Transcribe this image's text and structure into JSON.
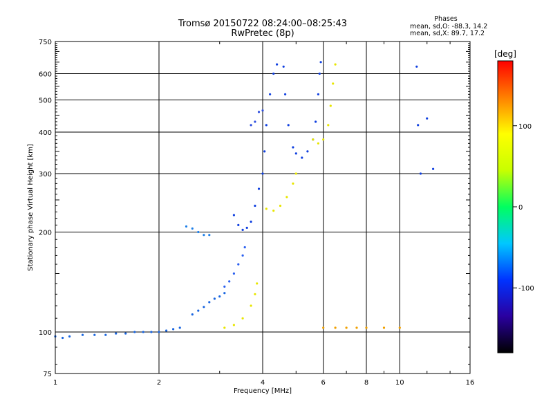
{
  "header": {
    "title_line1": "Tromsø 20150722 08:24:00–08:25:43",
    "title_line2": "RwPretec (8p)"
  },
  "phases": {
    "heading": "Phases",
    "o_stats": "mean, sd,O: -88.3, 14.2",
    "x_stats": "mean, sd,X:  89.7, 17.2"
  },
  "colorbar": {
    "label": "[deg]",
    "ticks": [
      {
        "value": 100,
        "label": "100"
      },
      {
        "value": 0,
        "label": "0"
      },
      {
        "value": -100,
        "label": "-100"
      }
    ],
    "range": [
      -180,
      180
    ],
    "colors": [
      "#000000",
      "#2a00a0",
      "#0033ff",
      "#00c8ff",
      "#00ff60",
      "#c8ff00",
      "#ffff00",
      "#ff8000",
      "#ff0000"
    ]
  },
  "chart_data": {
    "type": "scatter",
    "xlabel": "Frequency [MHz]",
    "ylabel": "Stationary phase Virtual Height [km]",
    "xscale": "log",
    "yscale": "log",
    "xlim": [
      1,
      16
    ],
    "ylim": [
      75,
      750
    ],
    "xticks": [
      1,
      2,
      4,
      6,
      8,
      10,
      16
    ],
    "xtick_labels": [
      "1",
      "2",
      "4",
      "6",
      "8",
      "10",
      "16"
    ],
    "yticks": [
      75,
      100,
      200,
      300,
      400,
      500,
      600,
      750
    ],
    "ytick_labels": [
      "75",
      "100",
      "200",
      "300",
      "400",
      "500",
      "600",
      "750"
    ],
    "grid": true,
    "series": [
      {
        "color": "#1a66e0",
        "points": [
          [
            1.0,
            97
          ],
          [
            1.05,
            96
          ],
          [
            1.1,
            97
          ],
          [
            1.2,
            98
          ],
          [
            1.3,
            98
          ],
          [
            1.4,
            98
          ],
          [
            1.5,
            99
          ],
          [
            1.6,
            99
          ],
          [
            1.7,
            100
          ],
          [
            1.8,
            100
          ],
          [
            1.9,
            100
          ],
          [
            2.0,
            100
          ],
          [
            2.1,
            101
          ],
          [
            2.2,
            102
          ],
          [
            2.3,
            103
          ]
        ]
      },
      {
        "color": "#1a66e0",
        "points": [
          [
            2.5,
            113
          ],
          [
            2.6,
            116
          ],
          [
            2.7,
            119
          ],
          [
            2.8,
            123
          ],
          [
            2.9,
            126
          ],
          [
            3.0,
            128
          ],
          [
            3.1,
            131
          ]
        ]
      },
      {
        "color": "#2a5ff0",
        "points": [
          [
            3.1,
            137
          ],
          [
            3.2,
            142
          ],
          [
            3.3,
            150
          ],
          [
            3.4,
            160
          ],
          [
            3.5,
            170
          ],
          [
            3.55,
            180
          ]
        ]
      },
      {
        "color": "#1f80e8",
        "points": [
          [
            2.4,
            208
          ],
          [
            2.5,
            205
          ],
          [
            2.6,
            200
          ],
          [
            2.7,
            196
          ],
          [
            2.8,
            196
          ]
        ]
      },
      {
        "color": "#1040e0",
        "points": [
          [
            3.3,
            225
          ],
          [
            3.4,
            210
          ],
          [
            3.5,
            203
          ],
          [
            3.6,
            206
          ],
          [
            3.7,
            215
          ],
          [
            3.8,
            240
          ],
          [
            3.9,
            270
          ],
          [
            4.0,
            300
          ],
          [
            4.05,
            350
          ],
          [
            4.1,
            420
          ],
          [
            4.2,
            520
          ],
          [
            4.3,
            600
          ],
          [
            4.4,
            640
          ]
        ]
      },
      {
        "color": "#1040e0",
        "points": [
          [
            4.6,
            630
          ],
          [
            4.65,
            520
          ],
          [
            4.75,
            420
          ],
          [
            4.9,
            360
          ],
          [
            5.0,
            345
          ],
          [
            5.2,
            335
          ],
          [
            5.4,
            350
          ],
          [
            5.6,
            380
          ],
          [
            5.7,
            430
          ],
          [
            5.8,
            520
          ],
          [
            5.85,
            600
          ],
          [
            5.9,
            650
          ]
        ]
      },
      {
        "color": "#3050e0",
        "points": [
          [
            3.7,
            420
          ],
          [
            3.8,
            430
          ],
          [
            3.9,
            460
          ],
          [
            4.0,
            465
          ]
        ]
      },
      {
        "color": "#e8e600",
        "points": [
          [
            3.1,
            103
          ],
          [
            3.3,
            105
          ],
          [
            3.5,
            110
          ],
          [
            3.7,
            120
          ],
          [
            3.8,
            130
          ],
          [
            3.85,
            140
          ]
        ]
      },
      {
        "color": "#e8e600",
        "points": [
          [
            4.1,
            235
          ],
          [
            4.3,
            232
          ],
          [
            4.5,
            240
          ],
          [
            4.7,
            255
          ],
          [
            4.9,
            280
          ],
          [
            5.0,
            300
          ]
        ]
      },
      {
        "color": "#e8e600",
        "points": [
          [
            5.6,
            380
          ],
          [
            5.8,
            370
          ],
          [
            6.0,
            380
          ],
          [
            6.2,
            420
          ],
          [
            6.3,
            480
          ],
          [
            6.4,
            560
          ],
          [
            6.5,
            640
          ]
        ]
      },
      {
        "color": "#f0a000",
        "points": [
          [
            6.0,
            103
          ],
          [
            6.5,
            103
          ],
          [
            7.0,
            103
          ],
          [
            7.5,
            103
          ],
          [
            8.0,
            103
          ],
          [
            9.0,
            103
          ],
          [
            10.0,
            103
          ]
        ]
      },
      {
        "color": "#1040e0",
        "points": [
          [
            11.2,
            630
          ],
          [
            11.3,
            420
          ],
          [
            11.5,
            300
          ],
          [
            12.0,
            440
          ],
          [
            12.5,
            310
          ]
        ]
      }
    ]
  }
}
